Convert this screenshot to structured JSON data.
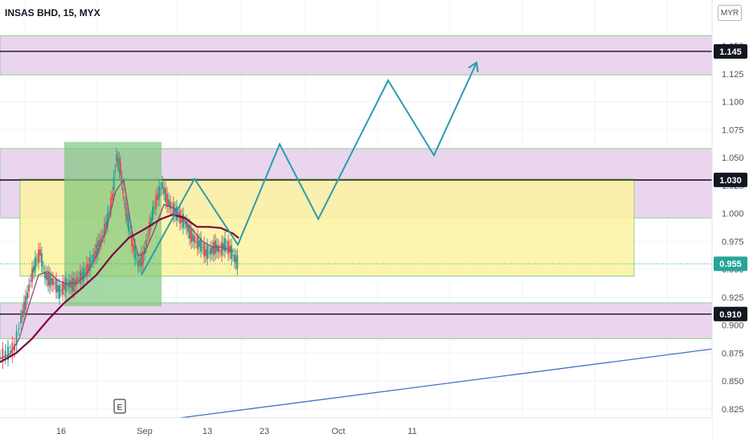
{
  "header": {
    "title": "INSAS BHD, 15, MYX",
    "currency": "MYR"
  },
  "colors": {
    "zone_fill": "#e9d5ee",
    "zone_border": "#8fd18f",
    "range_fill": "#fdf3a0",
    "range_border": "#8fd18f",
    "impulse_fill": "#7ec77e",
    "projection": "#2c9bb0",
    "trendline": "#4472c4",
    "ma_fast": "#8e4a7a",
    "ma_slow": "#800040",
    "last_price": "#26a69a",
    "up": "#26a69a",
    "down": "#ef5350"
  },
  "chart_data": {
    "type": "line",
    "title": "",
    "xlabel": "",
    "ylabel": "",
    "ylim": [
      0.813,
      1.163
    ],
    "y_ticks": [
      "1.150",
      "1.125",
      "1.100",
      "1.075",
      "1.050",
      "1.025",
      "1.000",
      "0.975",
      "0.950",
      "0.925",
      "0.900",
      "0.875",
      "0.850",
      "0.825"
    ],
    "x_ticks": [
      "16",
      "Sep",
      "13",
      "23",
      "Oct",
      "11"
    ],
    "grid": true,
    "price_labels": [
      {
        "text": "1.145",
        "value": 1.145,
        "style": "level"
      },
      {
        "text": "1.030",
        "value": 1.03,
        "style": "level"
      },
      {
        "text": "0.955",
        "value": 0.955,
        "style": "last"
      },
      {
        "text": "0.910",
        "value": 0.91,
        "style": "level"
      }
    ],
    "horizontal_levels": [
      1.145,
      1.03,
      0.91
    ],
    "zones": [
      {
        "from": 1.124,
        "to": 1.159
      },
      {
        "from": 0.996,
        "to": 1.058
      },
      {
        "from": 0.888,
        "to": 0.92
      }
    ],
    "range_box": {
      "from": 0.944,
      "to": 1.031
    },
    "impulse_box": {
      "from": 0.917,
      "to": 1.064
    },
    "projection_path": [
      {
        "t": 176,
        "y": 0.945
      },
      {
        "t": 242,
        "y": 1.031
      },
      {
        "t": 296,
        "y": 0.972
      },
      {
        "t": 348,
        "y": 1.062
      },
      {
        "t": 396,
        "y": 0.995
      },
      {
        "t": 483,
        "y": 1.119
      },
      {
        "t": 540,
        "y": 1.052
      },
      {
        "t": 593,
        "y": 1.135
      }
    ],
    "trendline": [
      {
        "t": 180,
        "y": 0.813
      },
      {
        "t": 932,
        "y": 0.883
      }
    ],
    "price_series": [
      {
        "t": 0,
        "y": 0.872
      },
      {
        "t": 10,
        "y": 0.875
      },
      {
        "t": 18,
        "y": 0.88
      },
      {
        "t": 26,
        "y": 0.905
      },
      {
        "t": 32,
        "y": 0.92
      },
      {
        "t": 38,
        "y": 0.94
      },
      {
        "t": 44,
        "y": 0.955
      },
      {
        "t": 50,
        "y": 0.965
      },
      {
        "t": 56,
        "y": 0.945
      },
      {
        "t": 62,
        "y": 0.94
      },
      {
        "t": 68,
        "y": 0.938
      },
      {
        "t": 74,
        "y": 0.93
      },
      {
        "t": 80,
        "y": 0.935
      },
      {
        "t": 86,
        "y": 0.937
      },
      {
        "t": 92,
        "y": 0.936
      },
      {
        "t": 98,
        "y": 0.942
      },
      {
        "t": 104,
        "y": 0.945
      },
      {
        "t": 110,
        "y": 0.952
      },
      {
        "t": 116,
        "y": 0.96
      },
      {
        "t": 122,
        "y": 0.97
      },
      {
        "t": 128,
        "y": 0.98
      },
      {
        "t": 134,
        "y": 0.995
      },
      {
        "t": 140,
        "y": 1.015
      },
      {
        "t": 145,
        "y": 1.05
      },
      {
        "t": 150,
        "y": 1.04
      },
      {
        "t": 155,
        "y": 1.01
      },
      {
        "t": 160,
        "y": 0.99
      },
      {
        "t": 166,
        "y": 0.97
      },
      {
        "t": 172,
        "y": 0.955
      },
      {
        "t": 178,
        "y": 0.96
      },
      {
        "t": 184,
        "y": 0.98
      },
      {
        "t": 190,
        "y": 1.0
      },
      {
        "t": 196,
        "y": 1.015
      },
      {
        "t": 202,
        "y": 1.025
      },
      {
        "t": 208,
        "y": 1.012
      },
      {
        "t": 214,
        "y": 1.005
      },
      {
        "t": 220,
        "y": 1.0
      },
      {
        "t": 226,
        "y": 0.995
      },
      {
        "t": 232,
        "y": 0.99
      },
      {
        "t": 238,
        "y": 0.98
      },
      {
        "t": 244,
        "y": 0.975
      },
      {
        "t": 250,
        "y": 0.972
      },
      {
        "t": 256,
        "y": 0.965
      },
      {
        "t": 262,
        "y": 0.966
      },
      {
        "t": 268,
        "y": 0.97
      },
      {
        "t": 274,
        "y": 0.967
      },
      {
        "t": 280,
        "y": 0.972
      },
      {
        "t": 286,
        "y": 0.968
      },
      {
        "t": 292,
        "y": 0.96
      },
      {
        "t": 297,
        "y": 0.955
      }
    ],
    "ma_fast": [
      {
        "t": 0,
        "y": 0.87
      },
      {
        "t": 12,
        "y": 0.874
      },
      {
        "t": 24,
        "y": 0.888
      },
      {
        "t": 36,
        "y": 0.918
      },
      {
        "t": 48,
        "y": 0.945
      },
      {
        "t": 60,
        "y": 0.948
      },
      {
        "t": 72,
        "y": 0.94
      },
      {
        "t": 84,
        "y": 0.937
      },
      {
        "t": 96,
        "y": 0.938
      },
      {
        "t": 108,
        "y": 0.946
      },
      {
        "t": 120,
        "y": 0.962
      },
      {
        "t": 132,
        "y": 0.985
      },
      {
        "t": 144,
        "y": 1.02
      },
      {
        "t": 154,
        "y": 1.03
      },
      {
        "t": 164,
        "y": 0.985
      },
      {
        "t": 172,
        "y": 0.962
      },
      {
        "t": 180,
        "y": 0.965
      },
      {
        "t": 192,
        "y": 0.985
      },
      {
        "t": 204,
        "y": 1.008
      },
      {
        "t": 216,
        "y": 1.005
      },
      {
        "t": 228,
        "y": 0.995
      },
      {
        "t": 240,
        "y": 0.985
      },
      {
        "t": 252,
        "y": 0.975
      },
      {
        "t": 264,
        "y": 0.97
      },
      {
        "t": 276,
        "y": 0.97
      },
      {
        "t": 290,
        "y": 0.966
      }
    ],
    "ma_slow": [
      {
        "t": 0,
        "y": 0.867
      },
      {
        "t": 20,
        "y": 0.875
      },
      {
        "t": 40,
        "y": 0.888
      },
      {
        "t": 60,
        "y": 0.905
      },
      {
        "t": 80,
        "y": 0.92
      },
      {
        "t": 100,
        "y": 0.932
      },
      {
        "t": 120,
        "y": 0.945
      },
      {
        "t": 140,
        "y": 0.963
      },
      {
        "t": 160,
        "y": 0.978
      },
      {
        "t": 180,
        "y": 0.986
      },
      {
        "t": 200,
        "y": 0.995
      },
      {
        "t": 215,
        "y": 0.999
      },
      {
        "t": 230,
        "y": 0.996
      },
      {
        "t": 245,
        "y": 0.988
      },
      {
        "t": 260,
        "y": 0.988
      },
      {
        "t": 275,
        "y": 0.987
      },
      {
        "t": 290,
        "y": 0.982
      },
      {
        "t": 297,
        "y": 0.978
      }
    ]
  },
  "markers": {
    "event_label": "E"
  }
}
